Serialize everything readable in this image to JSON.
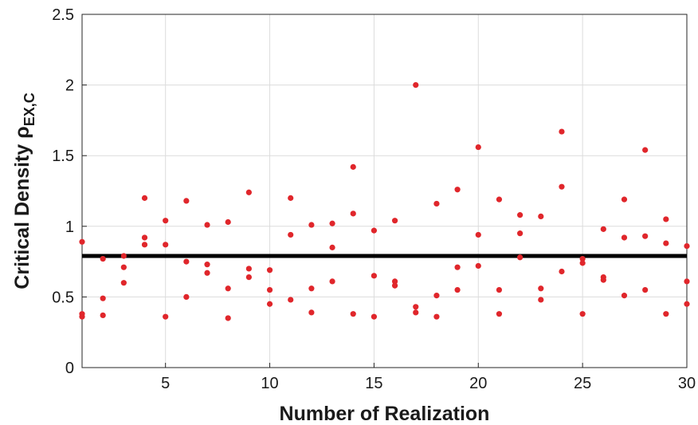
{
  "chart_data": {
    "type": "scatter",
    "title": "",
    "xlabel": "Number of Realization",
    "ylabel": {
      "main": "Critical Density ",
      "symbol": "ρ",
      "subscript": "EX,C"
    },
    "xlim": [
      1,
      30
    ],
    "ylim": [
      0,
      2.5
    ],
    "xticks": [
      5,
      10,
      15,
      20,
      25,
      30
    ],
    "yticks": [
      0,
      0.5,
      1,
      1.5,
      2,
      2.5
    ],
    "ytick_labels": [
      "0",
      "0.5",
      "1",
      "1.5",
      "2",
      "2.5"
    ],
    "grid": true,
    "reference_line": {
      "y": 0.79,
      "color": "#000000"
    },
    "marker_color": "#e0262b",
    "points": [
      [
        1,
        0.89
      ],
      [
        1,
        0.38
      ],
      [
        1,
        0.36
      ],
      [
        2,
        0.77
      ],
      [
        2,
        0.49
      ],
      [
        2,
        0.37
      ],
      [
        3,
        0.79
      ],
      [
        3,
        0.71
      ],
      [
        3,
        0.6
      ],
      [
        4,
        1.2
      ],
      [
        4,
        0.92
      ],
      [
        4,
        0.87
      ],
      [
        5,
        1.04
      ],
      [
        5,
        0.87
      ],
      [
        5,
        0.36
      ],
      [
        6,
        1.18
      ],
      [
        6,
        0.75
      ],
      [
        6,
        0.5
      ],
      [
        7,
        1.01
      ],
      [
        7,
        0.73
      ],
      [
        7,
        0.67
      ],
      [
        8,
        1.03
      ],
      [
        8,
        0.56
      ],
      [
        8,
        0.35
      ],
      [
        9,
        1.24
      ],
      [
        9,
        0.7
      ],
      [
        9,
        0.64
      ],
      [
        10,
        0.69
      ],
      [
        10,
        0.55
      ],
      [
        10,
        0.45
      ],
      [
        11,
        1.2
      ],
      [
        11,
        0.94
      ],
      [
        11,
        0.48
      ],
      [
        12,
        1.01
      ],
      [
        12,
        0.56
      ],
      [
        12,
        0.39
      ],
      [
        13,
        1.02
      ],
      [
        13,
        0.85
      ],
      [
        13,
        0.61
      ],
      [
        14,
        1.42
      ],
      [
        14,
        1.09
      ],
      [
        14,
        0.38
      ],
      [
        15,
        0.97
      ],
      [
        15,
        0.65
      ],
      [
        15,
        0.36
      ],
      [
        16,
        1.04
      ],
      [
        16,
        0.61
      ],
      [
        16,
        0.58
      ],
      [
        17,
        2.0
      ],
      [
        17,
        0.43
      ],
      [
        17,
        0.39
      ],
      [
        18,
        1.16
      ],
      [
        18,
        0.51
      ],
      [
        18,
        0.36
      ],
      [
        19,
        1.26
      ],
      [
        19,
        0.71
      ],
      [
        19,
        0.55
      ],
      [
        20,
        1.56
      ],
      [
        20,
        0.94
      ],
      [
        20,
        0.72
      ],
      [
        21,
        1.19
      ],
      [
        21,
        0.55
      ],
      [
        21,
        0.38
      ],
      [
        22,
        1.08
      ],
      [
        22,
        0.95
      ],
      [
        22,
        0.78
      ],
      [
        23,
        1.07
      ],
      [
        23,
        0.56
      ],
      [
        23,
        0.48
      ],
      [
        24,
        1.67
      ],
      [
        24,
        1.28
      ],
      [
        24,
        0.68
      ],
      [
        25,
        0.77
      ],
      [
        25,
        0.74
      ],
      [
        25,
        0.38
      ],
      [
        26,
        0.98
      ],
      [
        26,
        0.64
      ],
      [
        26,
        0.62
      ],
      [
        27,
        1.19
      ],
      [
        27,
        0.92
      ],
      [
        27,
        0.51
      ],
      [
        28,
        1.54
      ],
      [
        28,
        0.93
      ],
      [
        28,
        0.55
      ],
      [
        29,
        1.05
      ],
      [
        29,
        0.88
      ],
      [
        29,
        0.38
      ],
      [
        30,
        0.86
      ],
      [
        30,
        0.61
      ],
      [
        30,
        0.45
      ]
    ]
  }
}
